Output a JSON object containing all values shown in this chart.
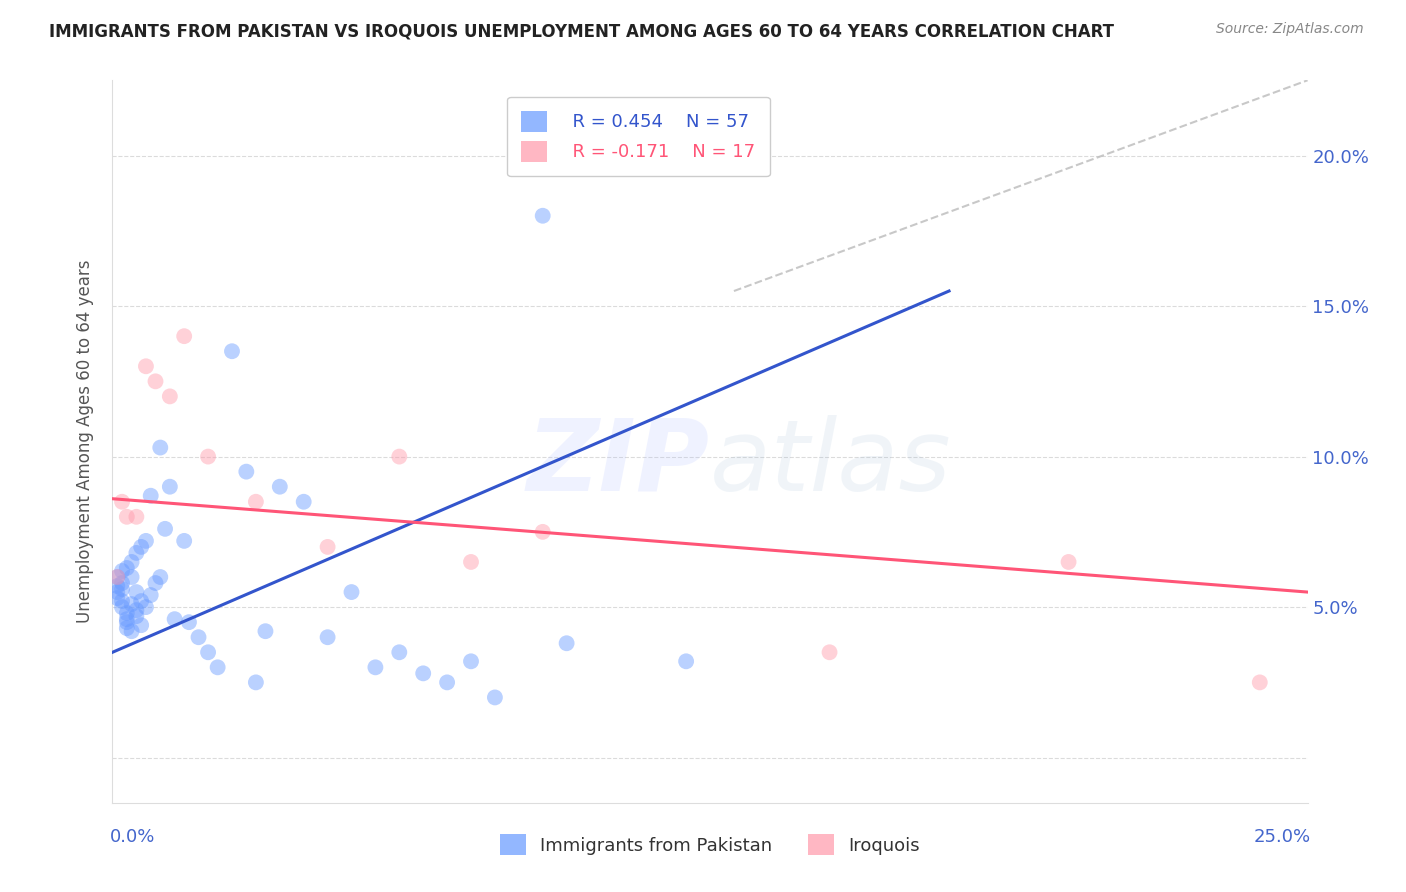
{
  "title": "IMMIGRANTS FROM PAKISTAN VS IROQUOIS UNEMPLOYMENT AMONG AGES 60 TO 64 YEARS CORRELATION CHART",
  "source": "Source: ZipAtlas.com",
  "ylabel": "Unemployment Among Ages 60 to 64 years",
  "ytick_labels": [
    "",
    "5.0%",
    "10.0%",
    "15.0%",
    "20.0%"
  ],
  "yticks": [
    0.0,
    0.05,
    0.1,
    0.15,
    0.2
  ],
  "xlim": [
    0.0,
    0.25
  ],
  "ylim": [
    -0.015,
    0.225
  ],
  "color_blue": "#6699ff",
  "color_pink": "#ff99aa",
  "color_line_blue": "#3355cc",
  "color_line_pink": "#ff5577",
  "color_line_gray": "#bbbbbb",
  "blue_trendline_x": [
    0.0,
    0.175
  ],
  "blue_trendline_y": [
    0.035,
    0.155
  ],
  "pink_trendline_x": [
    0.0,
    0.25
  ],
  "pink_trendline_y": [
    0.086,
    0.055
  ],
  "gray_trendline_x": [
    0.13,
    0.25
  ],
  "gray_trendline_y": [
    0.155,
    0.225
  ],
  "blue_scatter_x": [
    0.001,
    0.001,
    0.001,
    0.001,
    0.002,
    0.002,
    0.002,
    0.002,
    0.002,
    0.003,
    0.003,
    0.003,
    0.003,
    0.003,
    0.004,
    0.004,
    0.004,
    0.004,
    0.005,
    0.005,
    0.005,
    0.005,
    0.006,
    0.006,
    0.006,
    0.007,
    0.007,
    0.008,
    0.008,
    0.009,
    0.01,
    0.01,
    0.011,
    0.012,
    0.013,
    0.015,
    0.016,
    0.018,
    0.02,
    0.022,
    0.025,
    0.028,
    0.03,
    0.032,
    0.035,
    0.04,
    0.045,
    0.05,
    0.055,
    0.06,
    0.065,
    0.07,
    0.075,
    0.08,
    0.09,
    0.095,
    0.12
  ],
  "blue_scatter_y": [
    0.055,
    0.057,
    0.06,
    0.053,
    0.052,
    0.058,
    0.062,
    0.05,
    0.056,
    0.048,
    0.045,
    0.063,
    0.043,
    0.046,
    0.051,
    0.065,
    0.06,
    0.042,
    0.049,
    0.055,
    0.068,
    0.047,
    0.07,
    0.052,
    0.044,
    0.05,
    0.072,
    0.054,
    0.087,
    0.058,
    0.06,
    0.103,
    0.076,
    0.09,
    0.046,
    0.072,
    0.045,
    0.04,
    0.035,
    0.03,
    0.135,
    0.095,
    0.025,
    0.042,
    0.09,
    0.085,
    0.04,
    0.055,
    0.03,
    0.035,
    0.028,
    0.025,
    0.032,
    0.02,
    0.18,
    0.038,
    0.032
  ],
  "pink_scatter_x": [
    0.001,
    0.002,
    0.003,
    0.005,
    0.007,
    0.009,
    0.012,
    0.015,
    0.02,
    0.03,
    0.045,
    0.06,
    0.075,
    0.09,
    0.15,
    0.2,
    0.24
  ],
  "pink_scatter_y": [
    0.06,
    0.085,
    0.08,
    0.08,
    0.13,
    0.125,
    0.12,
    0.14,
    0.1,
    0.085,
    0.07,
    0.1,
    0.065,
    0.075,
    0.035,
    0.065,
    0.025
  ],
  "watermark_zip": "ZIP",
  "watermark_atlas": "atlas",
  "legend_label_blue": "Immigrants from Pakistan",
  "legend_label_pink": "Iroquois",
  "legend_r1": "R = 0.454",
  "legend_n1": "N = 57",
  "legend_r2": "R = -0.171",
  "legend_n2": "N = 17"
}
